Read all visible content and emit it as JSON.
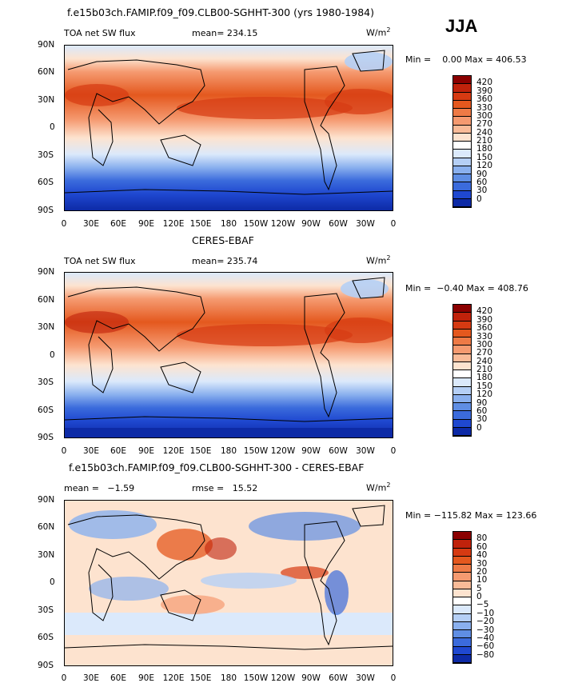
{
  "season": "JJA",
  "panels": [
    {
      "title": "f.e15b03ch.FAMIP.f09_f09.CLB00-SGHHT-300 (yrs 1980-1984)",
      "left_label": "TOA net SW flux",
      "mid_label": "mean= 234.15",
      "unit_base": "W/m",
      "unit_exp": "2",
      "minmax": "Min =    0.00 Max = 406.53"
    },
    {
      "title": "CERES-EBAF",
      "left_label": "TOA net SW flux",
      "mid_label": "mean= 235.74",
      "unit_base": "W/m",
      "unit_exp": "2",
      "minmax": "Min =  −0.40 Max = 408.76"
    },
    {
      "title": "f.e15b03ch.FAMIP.f09_f09.CLB00-SGHHT-300 - CERES-EBAF",
      "left_label": "mean =   −1.59",
      "mid_label": "rmse =   15.52",
      "unit_base": "W/m",
      "unit_exp": "2",
      "minmax": "Min = −115.82 Max = 123.66"
    }
  ],
  "lat_labels": [
    "90N",
    "60N",
    "30N",
    "0",
    "30S",
    "60S",
    "90S"
  ],
  "lon_labels": [
    "0",
    "30E",
    "60E",
    "90E",
    "120E",
    "150E",
    "180",
    "150W",
    "120W",
    "90W",
    "60W",
    "30W",
    "0"
  ],
  "colorbars": {
    "flux": {
      "labels": [
        "420",
        "390",
        "360",
        "330",
        "300",
        "270",
        "240",
        "210",
        "180",
        "150",
        "120",
        "90",
        "60",
        "30",
        "0"
      ],
      "colors": [
        "#8b0000",
        "#c0220b",
        "#d63a12",
        "#e4581e",
        "#ee7a46",
        "#f59a70",
        "#f9bb98",
        "#fde3cf",
        "#ffffff",
        "#dbe9fb",
        "#b5cff5",
        "#8ab0ee",
        "#5f8ee4",
        "#3b6bdc",
        "#1f48d0",
        "#0d2aa6"
      ]
    },
    "diff": {
      "labels": [
        "80",
        "60",
        "40",
        "30",
        "20",
        "10",
        "5",
        "0",
        "−5",
        "−10",
        "−20",
        "−30",
        "−40",
        "−60",
        "−80"
      ],
      "colors": [
        "#8b0000",
        "#c0220b",
        "#d63a12",
        "#e4581e",
        "#ee7a46",
        "#f59a70",
        "#f9bb98",
        "#fde3cf",
        "#ffffff",
        "#dbe9fb",
        "#b5cff5",
        "#8ab0ee",
        "#5f8ee4",
        "#3b6bdc",
        "#1f48d0",
        "#0d2aa6"
      ]
    }
  },
  "chart_data": [
    {
      "type": "heatmap",
      "title": "f.e15b03ch.FAMIP.f09_f09.CLB00-SGHHT-300 (yrs 1980-1984)",
      "variable": "TOA net SW flux",
      "units": "W/m2",
      "mean": 234.15,
      "min": 0.0,
      "max": 406.53,
      "xlim": [
        "0",
        "0"
      ],
      "ylim": [
        "90S",
        "90N"
      ],
      "contour_levels": [
        0,
        30,
        60,
        90,
        120,
        150,
        180,
        210,
        240,
        270,
        300,
        330,
        360,
        390,
        420
      ]
    },
    {
      "type": "heatmap",
      "title": "CERES-EBAF",
      "variable": "TOA net SW flux",
      "units": "W/m2",
      "mean": 235.74,
      "min": -0.4,
      "max": 408.76,
      "xlim": [
        "0",
        "0"
      ],
      "ylim": [
        "90S",
        "90N"
      ],
      "contour_levels": [
        0,
        30,
        60,
        90,
        120,
        150,
        180,
        210,
        240,
        270,
        300,
        330,
        360,
        390,
        420
      ]
    },
    {
      "type": "heatmap",
      "title": "f.e15b03ch.FAMIP.f09_f09.CLB00-SGHHT-300 - CERES-EBAF",
      "units": "W/m2",
      "mean": -1.59,
      "rmse": 15.52,
      "min": -115.82,
      "max": 123.66,
      "xlim": [
        "0",
        "0"
      ],
      "ylim": [
        "90S",
        "90N"
      ],
      "contour_levels": [
        -80,
        -60,
        -40,
        -30,
        -20,
        -10,
        -5,
        0,
        5,
        10,
        20,
        30,
        40,
        60,
        80
      ]
    }
  ]
}
